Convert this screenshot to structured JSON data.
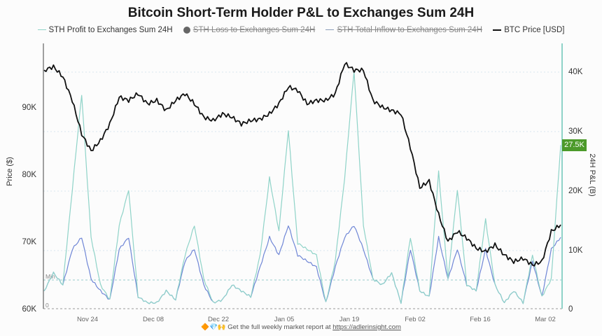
{
  "title": "Bitcoin Short-Term Holder P&L to Exchanges Sum 24H",
  "legend": [
    {
      "label": "STH Profit to Exchanges Sum 24H",
      "color": "#8fd3c8",
      "swatch": "line",
      "active": true
    },
    {
      "label": "STH Loss to Exchanges Sum 24H",
      "color": "#666666",
      "swatch": "dot",
      "active": false
    },
    {
      "label": "STH Total Inflow to Exchanges Sum 24H",
      "color": "#8a9db8",
      "swatch": "line",
      "active": false
    },
    {
      "label": "BTC Price [USD]",
      "color": "#111111",
      "swatch": "line",
      "active": true
    }
  ],
  "axes": {
    "left_label": "Price ($)",
    "right_label": "24H P&L (B)",
    "left_ticks": [
      "90K",
      "80K",
      "70K",
      "60K"
    ],
    "right_ticks": [
      "40K",
      "30K",
      "20K",
      "10K",
      "0"
    ],
    "x_ticks": [
      "Nov 24",
      "Dec 08",
      "Dec 22",
      "Jan 05",
      "Jan 19",
      "Feb 02",
      "Feb 16",
      "Mar 02"
    ],
    "min_label": "Min",
    "zero_label": "0"
  },
  "current_value_badge": "27.5K",
  "footer": {
    "text": "Get the full weekly market report at ",
    "link": "https://adlerinsight.com",
    "emoji": "🔶💎🙌"
  },
  "colors": {
    "price_line": "#111111",
    "profit_line": "#8fd3c8",
    "loss_line": "#6f86d6",
    "badge": "#4c9a2a",
    "grid": "#d8e6ee"
  },
  "chart_data": {
    "type": "line",
    "title": "Bitcoin Short-Term Holder P&L to Exchanges Sum 24H",
    "xlabel": "",
    "ylabel_left": "Price ($)",
    "ylabel_right": "24H P&L (B)",
    "ylim_left": [
      60000,
      98000
    ],
    "ylim_right": [
      0,
      44000
    ],
    "x_ticks": [
      "Nov 24",
      "Dec 08",
      "Dec 22",
      "Jan 05",
      "Jan 19",
      "Feb 02",
      "Feb 16",
      "Mar 02"
    ],
    "grid": true,
    "legend_position": "top",
    "x": [
      "Nov 15",
      "Nov 17",
      "Nov 19",
      "Nov 21",
      "Nov 23",
      "Nov 25",
      "Nov 27",
      "Nov 29",
      "Dec 01",
      "Dec 03",
      "Dec 05",
      "Dec 07",
      "Dec 09",
      "Dec 11",
      "Dec 13",
      "Dec 15",
      "Dec 17",
      "Dec 19",
      "Dec 21",
      "Dec 23",
      "Dec 25",
      "Dec 27",
      "Dec 29",
      "Dec 31",
      "Jan 02",
      "Jan 04",
      "Jan 06",
      "Jan 08",
      "Jan 10",
      "Jan 12",
      "Jan 14",
      "Jan 16",
      "Jan 18",
      "Jan 20",
      "Jan 22",
      "Jan 24",
      "Jan 26",
      "Jan 28",
      "Jan 30",
      "Feb 01",
      "Feb 03",
      "Feb 05",
      "Feb 07",
      "Feb 09",
      "Feb 11",
      "Feb 13",
      "Feb 15",
      "Feb 17",
      "Feb 19",
      "Feb 21",
      "Feb 23",
      "Feb 25",
      "Feb 27",
      "Mar 01",
      "Mar 03",
      "Mar 05"
    ],
    "series": [
      {
        "name": "BTC Price [USD]",
        "axis": "left",
        "values": [
          95500,
          96000,
          94500,
          91000,
          86000,
          83500,
          85000,
          87500,
          91500,
          91000,
          92000,
          90500,
          91000,
          89500,
          91000,
          92000,
          90500,
          88500,
          88000,
          89000,
          88500,
          87500,
          88000,
          88200,
          89000,
          90500,
          93000,
          92500,
          90500,
          91000,
          91000,
          92000,
          96500,
          95500,
          95500,
          91000,
          90000,
          89500,
          89000,
          84000,
          78000,
          79000,
          74000,
          70000,
          71500,
          70500,
          69000,
          68500,
          69500,
          68000,
          67000,
          67500,
          66500,
          67000,
          71500,
          72500
        ]
      },
      {
        "name": "STH Profit to Exchanges Sum 24H",
        "axis": "right",
        "values": [
          3000,
          6000,
          4000,
          20000,
          36000,
          12000,
          4000,
          1500,
          14000,
          20000,
          2000,
          1000,
          1000,
          3000,
          1500,
          9000,
          14000,
          5000,
          1000,
          1500,
          4000,
          3000,
          2000,
          9000,
          22000,
          13000,
          30000,
          11000,
          10000,
          9000,
          1000,
          8000,
          22000,
          40000,
          14000,
          5000,
          4000,
          6000,
          1000,
          12000,
          3000,
          2000,
          23000,
          5000,
          20000,
          4000,
          3000,
          15000,
          4000,
          1000,
          3000,
          1000,
          9000,
          2000,
          5000,
          27500
        ]
      },
      {
        "name": "STH Loss to Exchanges Sum 24H",
        "axis": "right",
        "values": [
          3000,
          6000,
          4000,
          10000,
          12000,
          5000,
          3000,
          1500,
          10000,
          12000,
          2000,
          1000,
          1000,
          3000,
          1500,
          8000,
          10000,
          4000,
          1000,
          1500,
          4000,
          3000,
          2000,
          7000,
          12000,
          9000,
          14000,
          9000,
          8000,
          7000,
          1000,
          7000,
          12000,
          14000,
          10000,
          5000,
          4000,
          6000,
          1000,
          10000,
          3000,
          2000,
          12000,
          5000,
          10000,
          4000,
          3000,
          10000,
          4000,
          1000,
          3000,
          1000,
          8000,
          2000,
          10000,
          12000
        ]
      }
    ]
  }
}
